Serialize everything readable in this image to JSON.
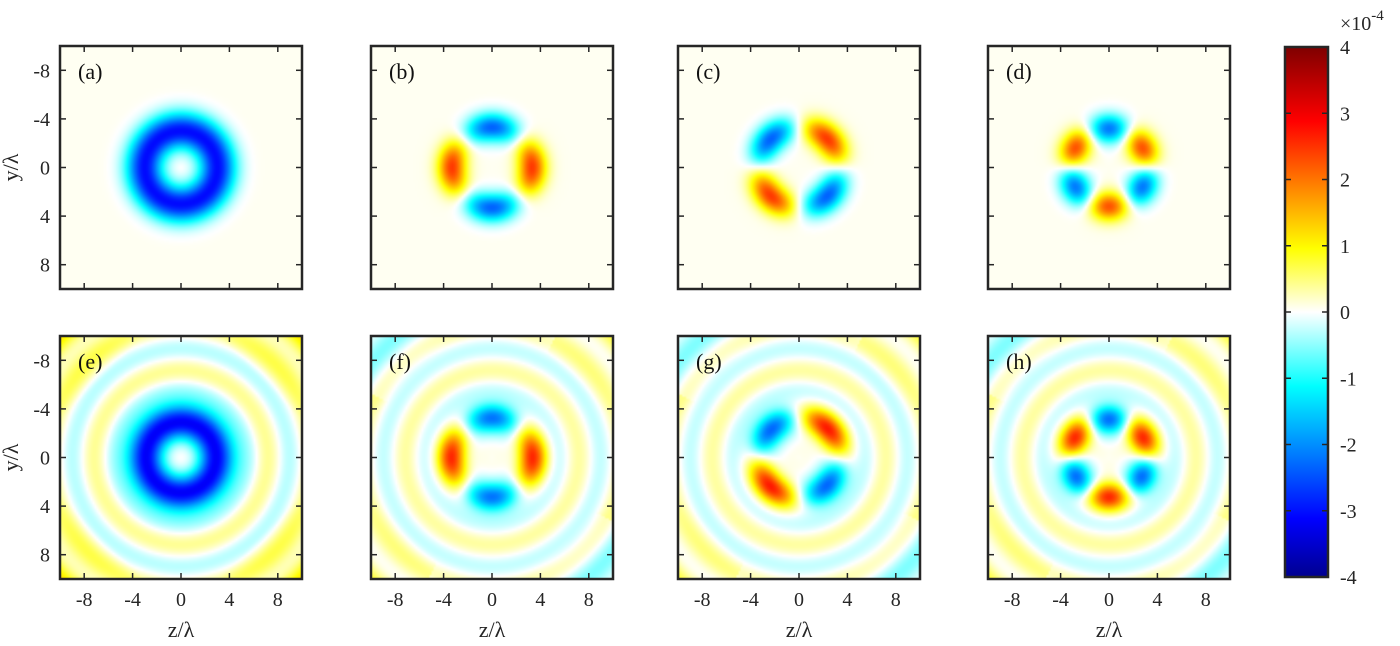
{
  "chart_data": {
    "type": "heatmap",
    "colormap": "jet",
    "xlabel": "z/λ",
    "ylabel": "y/λ",
    "xlim": [
      -10,
      10
    ],
    "ylim": [
      -10,
      10
    ],
    "y_reversed": true,
    "xticks": [
      "-8",
      "-4",
      "0",
      "4",
      "8"
    ],
    "yticks": [
      "-8",
      "-4",
      "0",
      "4",
      "8"
    ],
    "colorbar": {
      "range": [
        -4,
        4
      ],
      "ticks": [
        "4",
        "3",
        "2",
        "1",
        "0",
        "-1",
        "-2",
        "-3",
        "-4"
      ],
      "multiplier": "×10",
      "exponent": "-4"
    },
    "panels": [
      {
        "label": "(a)",
        "pattern": "ring",
        "petals": 0,
        "amplitude": -3.1,
        "radius": 3.0,
        "background": 0.05,
        "ripple": 0
      },
      {
        "label": "(b)",
        "pattern": "quadrupole-axis",
        "petals": 4,
        "amplitude": 2.4,
        "radius": 3.3,
        "background": 0.05,
        "ripple": 0
      },
      {
        "label": "(c)",
        "pattern": "quadrupole-diagonal",
        "petals": 4,
        "amplitude": 2.4,
        "radius": 3.3,
        "background": 0.05,
        "ripple": 0
      },
      {
        "label": "(d)",
        "pattern": "hexapole",
        "petals": 6,
        "amplitude": 2.2,
        "radius": 3.2,
        "background": 0.05,
        "ripple": 0
      },
      {
        "label": "(e)",
        "pattern": "ring",
        "petals": 0,
        "amplitude": -3.3,
        "radius": 3.0,
        "background": 0.05,
        "ripple": 0.35
      },
      {
        "label": "(f)",
        "pattern": "quadrupole-axis",
        "petals": 4,
        "amplitude": 2.4,
        "radius": 3.3,
        "background": 0.05,
        "ripple": 0.3
      },
      {
        "label": "(g)",
        "pattern": "quadrupole-diagonal",
        "petals": 4,
        "amplitude": 2.5,
        "radius": 3.3,
        "background": 0.05,
        "ripple": 0.3
      },
      {
        "label": "(h)",
        "pattern": "hexapole",
        "petals": 6,
        "amplitude": 2.4,
        "radius": 3.2,
        "background": 0.05,
        "ripple": 0.3
      }
    ]
  }
}
